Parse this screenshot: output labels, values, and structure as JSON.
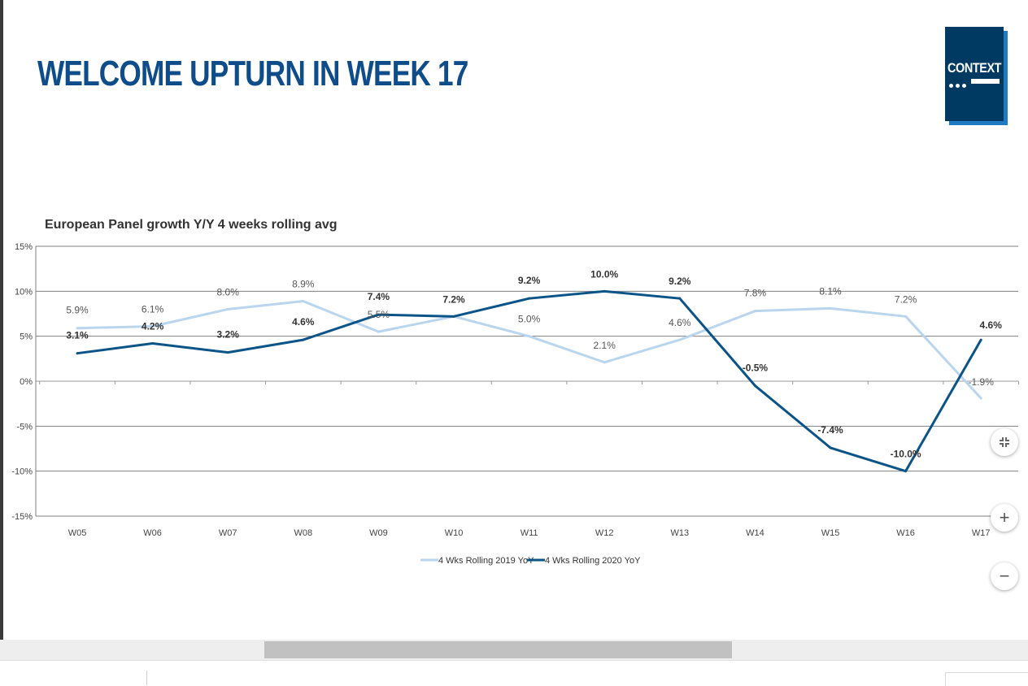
{
  "slide": {
    "title": "WELCOME UPTURN IN WEEK 17",
    "logo_text": "CONTEXT"
  },
  "colors": {
    "title": "#0e4d8a",
    "series_2019": "#b9d6ee",
    "series_2020": "#0b5488",
    "logo_bg": "#003a63",
    "logo_shadow": "#1f7bc1"
  },
  "chart_data": {
    "type": "line",
    "title": "European Panel growth Y/Y 4 weeks rolling avg",
    "categories": [
      "W05",
      "W06",
      "W07",
      "W08",
      "W09",
      "W10",
      "W11",
      "W12",
      "W13",
      "W14",
      "W15",
      "W16",
      "W17"
    ],
    "ylim": [
      -15,
      15
    ],
    "yticks": [
      "15%",
      "10%",
      "5%",
      "0%",
      "-5%",
      "-10%",
      "-15%"
    ],
    "grid": true,
    "legend_position": "bottom",
    "series": [
      {
        "name": "4 Wks Rolling 2019 YoY",
        "values": [
          5.9,
          6.1,
          8.0,
          8.9,
          5.5,
          7.2,
          5.0,
          2.1,
          4.6,
          7.8,
          8.1,
          7.2,
          -1.9
        ],
        "labels": [
          "5.9%",
          "6.1%",
          "8.0%",
          "8.9%",
          "5.5%",
          "",
          "5.0%",
          "2.1%",
          "4.6%",
          "7.8%",
          "8.1%",
          "7.2%",
          "-1.9%"
        ]
      },
      {
        "name": "4 Wks Rolling 2020 YoY",
        "values": [
          3.1,
          4.2,
          3.2,
          4.6,
          7.4,
          7.2,
          9.2,
          10.0,
          9.2,
          -0.5,
          -7.4,
          -10.0,
          4.6
        ],
        "labels": [
          "3.1%",
          "4.2%",
          "3.2%",
          "4.6%",
          "7.4%",
          "7.2%",
          "9.2%",
          "10.0%",
          "9.2%",
          "-0.5%",
          "-7.4%",
          "-10.0%",
          "4.6%"
        ]
      }
    ]
  },
  "controls": {
    "fit_icon": "compress-icon",
    "zoom_in_icon": "plus-icon",
    "zoom_out_icon": "minus-icon",
    "zoom_in_glyph": "+",
    "zoom_out_glyph": "−"
  }
}
